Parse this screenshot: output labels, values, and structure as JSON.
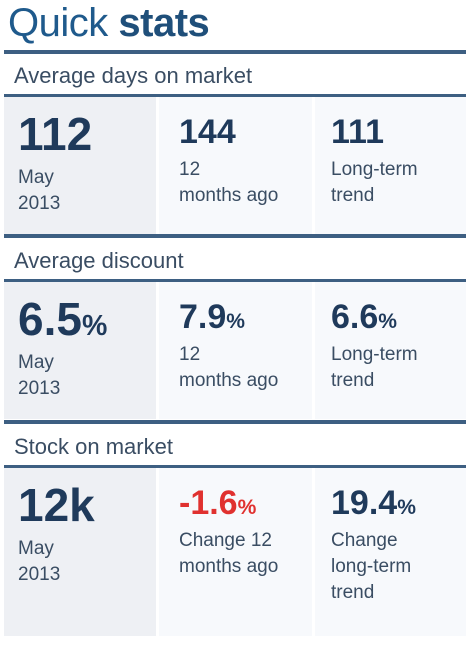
{
  "title": {
    "light": "Quick",
    "bold": "stats"
  },
  "sections": [
    {
      "header": "Average days on market",
      "cells": [
        {
          "value": "112",
          "unit": "",
          "label_line1": "May",
          "label_line2": "2013",
          "label_line3": ""
        },
        {
          "value": "144",
          "unit": "",
          "label_line1": "12",
          "label_line2": "months ago",
          "label_line3": ""
        },
        {
          "value": "111",
          "unit": "",
          "label_line1": "Long-term",
          "label_line2": "trend",
          "label_line3": ""
        }
      ]
    },
    {
      "header": "Average discount",
      "cells": [
        {
          "value": "6.5",
          "unit": "%",
          "label_line1": "May",
          "label_line2": "2013",
          "label_line3": ""
        },
        {
          "value": "7.9",
          "unit": "%",
          "label_line1": "12",
          "label_line2": "months ago",
          "label_line3": ""
        },
        {
          "value": "6.6",
          "unit": "%",
          "label_line1": "Long-term",
          "label_line2": "trend",
          "label_line3": ""
        }
      ]
    },
    {
      "header": "Stock on market",
      "cells": [
        {
          "value": "12k",
          "unit": "",
          "label_line1": "May",
          "label_line2": "2013",
          "label_line3": ""
        },
        {
          "value": "-1.6",
          "unit": "%",
          "label_line1": "Change 12",
          "label_line2": "months ago",
          "label_line3": ""
        },
        {
          "value": "19.4",
          "unit": "%",
          "label_line1": "Change",
          "label_line2": "long-term",
          "label_line3": "trend"
        }
      ]
    }
  ],
  "colors": {
    "text_primary": "#1f3a5b",
    "title_blue": "#1f5a8c",
    "rule": "#3d5f82",
    "negative_red": "#e0312f",
    "current_cell_bg": "#eef0f4",
    "other_cell_bg": "#f7f9fc"
  }
}
